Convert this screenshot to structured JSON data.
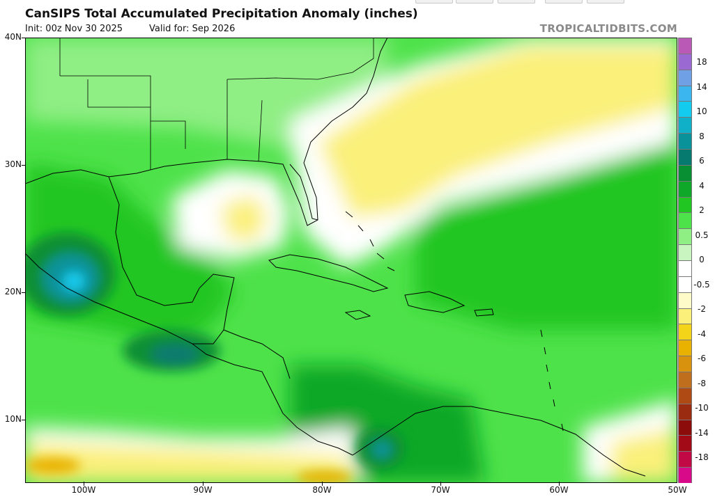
{
  "header": {
    "title": "CanSIPS Total Accumulated Precipitation Anomaly (inches)",
    "init": "Init: 00z Nov 30 2025",
    "valid": "Valid for: Sep 2026",
    "brand": "TROPICALTIDBITS.COM"
  },
  "axes": {
    "lat_labels": [
      "40N",
      "30N",
      "20N",
      "10N"
    ],
    "lon_labels": [
      "100W",
      "90W",
      "80W",
      "70W",
      "60W",
      "50W"
    ]
  },
  "colorbar": {
    "colors": [
      "#d80a8a",
      "#c10a45",
      "#a20a17",
      "#8c0c0c",
      "#9a2a10",
      "#b04a14",
      "#bf6e1e",
      "#d9920e",
      "#e9b200",
      "#f4d418",
      "#faf07a",
      "#fffbc8",
      "#ffffff",
      "#ffffff",
      "#c8f5c0",
      "#8fee84",
      "#4ee24a",
      "#22c622",
      "#10a828",
      "#088f34",
      "#077a70",
      "#09929a",
      "#0fb0c8",
      "#13cbee",
      "#3bb6ee",
      "#6fa0e6",
      "#9a6ad2",
      "#bb5ab6"
    ],
    "labels": [
      "-18",
      "-14",
      "-10",
      "-8",
      "-6",
      "-4",
      "-2",
      "-0.5",
      "0",
      "0.5",
      "2",
      "4",
      "6",
      "8",
      "10",
      "14",
      "18"
    ]
  }
}
